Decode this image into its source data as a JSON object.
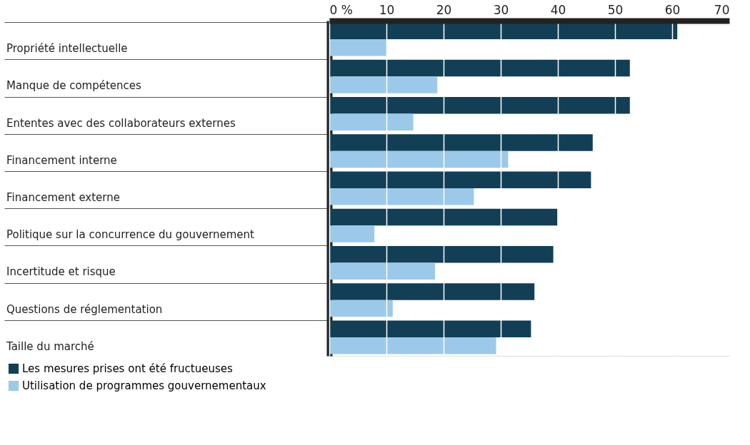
{
  "chart_data": {
    "type": "bar",
    "orientation": "horizontal",
    "categories": [
      "Propriété intellectuelle",
      "Manque de compétences",
      "Ententes avec des collaborateurs externes",
      "Financement interne",
      "Financement externe",
      "Politique sur la concurrence du gouvernement",
      "Incertitude et risque",
      "Questions de réglementation",
      "Taille du marché"
    ],
    "series": [
      {
        "name": "Les mesures prises ont été fructueuses",
        "color": "#123f55",
        "values": [
          60.9,
          52.6,
          52.6,
          46.1,
          45.8,
          39.9,
          39.2,
          35.9,
          35.3
        ]
      },
      {
        "name": "Utilisation de programmes gouvernementaux",
        "color": "#9cc9ea",
        "values": [
          10.0,
          18.9,
          14.7,
          31.3,
          25.3,
          7.9,
          18.5,
          11.1,
          29.2
        ]
      }
    ],
    "xlim": [
      0,
      70
    ],
    "xticks": [
      {
        "value": 0,
        "label": "0 %"
      },
      10,
      20,
      30,
      40,
      50,
      60,
      70
    ],
    "grid": "x",
    "legend": "bottom left"
  }
}
